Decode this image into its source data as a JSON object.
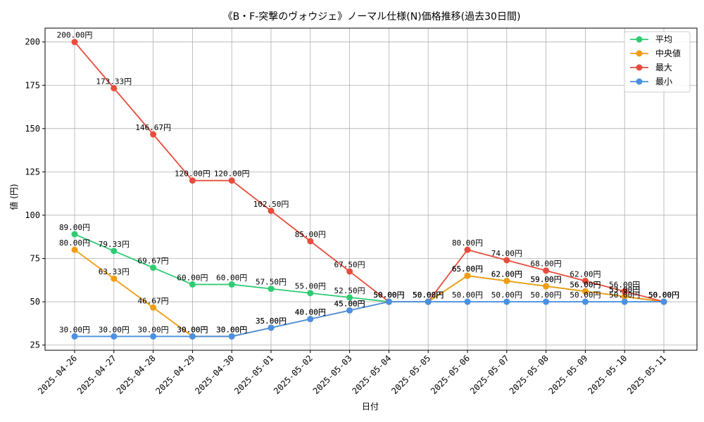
{
  "chart_data": {
    "type": "line",
    "title": "《B・F-突撃のヴォウジェ》ノーマル仕様(N)価格推移(過去30日間)",
    "xlabel": "日付",
    "ylabel": "値 (円)",
    "ylim": [
      22,
      208
    ],
    "yticks": [
      25,
      50,
      75,
      100,
      125,
      150,
      175,
      200
    ],
    "grid": true,
    "legend_position": "top-right",
    "label_suffix": "円",
    "categories": [
      "2025-04-26",
      "2025-04-27",
      "2025-04-28",
      "2025-04-29",
      "2025-04-30",
      "2025-05-01",
      "2025-05-02",
      "2025-05-03",
      "2025-05-04",
      "2025-05-05",
      "2025-05-06",
      "2025-05-07",
      "2025-05-08",
      "2025-05-09",
      "2025-05-10",
      "2025-05-11"
    ],
    "series": [
      {
        "name": "平均",
        "color": "#2ecc71",
        "values": [
          89.0,
          79.33,
          69.67,
          60.0,
          60.0,
          57.5,
          55.0,
          52.5,
          50.0,
          50.0,
          65.0,
          62.0,
          59.0,
          56.0,
          53.0,
          50.0
        ]
      },
      {
        "name": "中央値",
        "color": "#f39c12",
        "values": [
          80.0,
          63.33,
          46.67,
          30.0,
          30.0,
          35.0,
          40.0,
          45.0,
          50.0,
          50.0,
          65.0,
          62.0,
          59.0,
          56.0,
          53.0,
          50.0
        ]
      },
      {
        "name": "最大",
        "color": "#e74c3c",
        "values": [
          200.0,
          173.33,
          146.67,
          120.0,
          120.0,
          102.5,
          85.0,
          67.5,
          50.0,
          50.0,
          80.0,
          74.0,
          68.0,
          62.0,
          56.0,
          50.0
        ]
      },
      {
        "name": "最小",
        "color": "#4a90e2",
        "values": [
          30.0,
          30.0,
          30.0,
          30.0,
          30.0,
          35.0,
          40.0,
          45.0,
          50.0,
          50.0,
          50.0,
          50.0,
          50.0,
          50.0,
          50.0,
          50.0
        ]
      }
    ]
  }
}
